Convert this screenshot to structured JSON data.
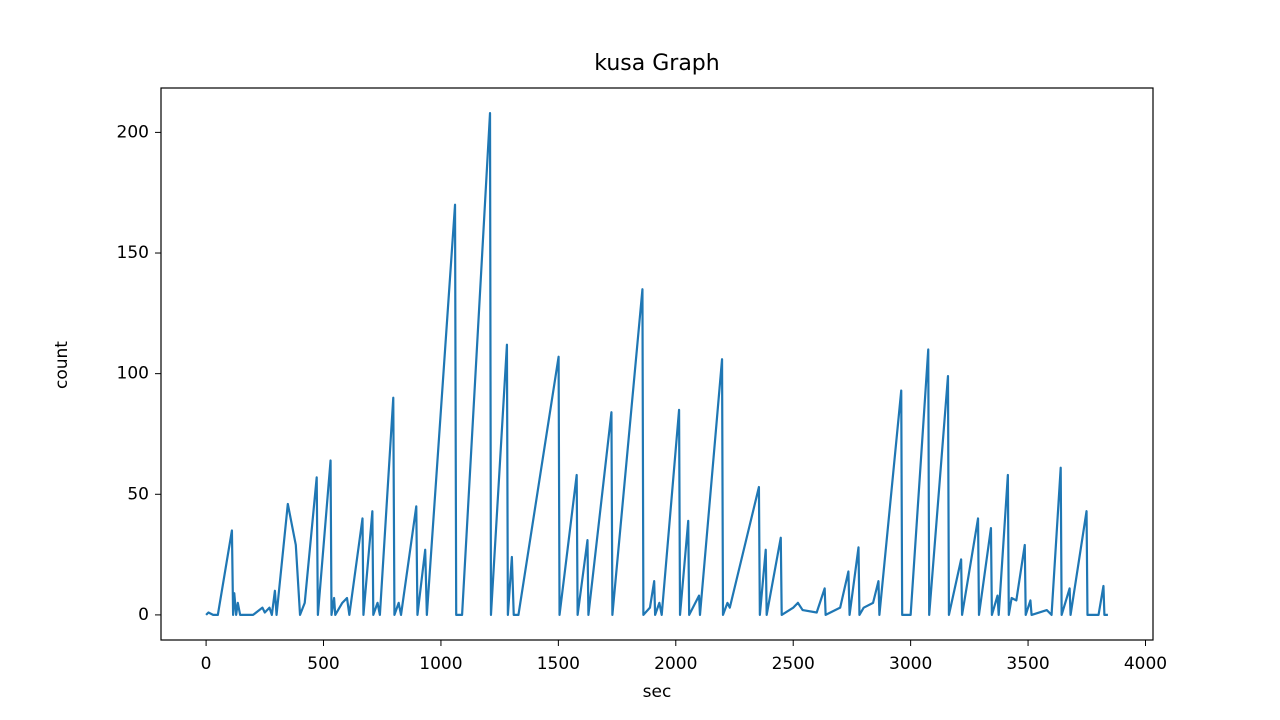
{
  "chart_data": {
    "type": "line",
    "title": "kusa Graph",
    "x_label": "sec",
    "y_label": "count",
    "color": "#1f77b4",
    "x": [
      0,
      10,
      30,
      50,
      110,
      115,
      120,
      128,
      135,
      145,
      200,
      240,
      250,
      270,
      280,
      293,
      300,
      348,
      382,
      400,
      420,
      471,
      476,
      530,
      534,
      545,
      550,
      580,
      600,
      610,
      666,
      670,
      708,
      712,
      730,
      740,
      797,
      802,
      820,
      830,
      895,
      900,
      933,
      940,
      1060,
      1065,
      1090,
      1209,
      1213,
      1281,
      1285,
      1302,
      1310,
      1330,
      1501,
      1505,
      1578,
      1582,
      1624,
      1628,
      1726,
      1730,
      1858,
      1862,
      1890,
      1908,
      1912,
      1930,
      1940,
      2014,
      2018,
      2053,
      2057,
      2099,
      2103,
      2197,
      2201,
      2220,
      2230,
      2354,
      2358,
      2383,
      2387,
      2447,
      2451,
      2500,
      2520,
      2540,
      2600,
      2634,
      2638,
      2700,
      2735,
      2740,
      2778,
      2782,
      2800,
      2840,
      2863,
      2867,
      2960,
      2964,
      3000,
      3075,
      3079,
      3159,
      3163,
      3215,
      3219,
      3287,
      3291,
      3342,
      3346,
      3370,
      3375,
      3414,
      3418,
      3430,
      3450,
      3486,
      3490,
      3510,
      3515,
      3580,
      3600,
      3639,
      3643,
      3677,
      3681,
      3749,
      3753,
      3800,
      3821,
      3825,
      3840
    ],
    "values": [
      0,
      1,
      0,
      0,
      35,
      0,
      9,
      0,
      5,
      0,
      0,
      3,
      1,
      3,
      0,
      10,
      0,
      46,
      29,
      0,
      5,
      57,
      0,
      64,
      0,
      7,
      0,
      5,
      7,
      0,
      40,
      0,
      43,
      0,
      5,
      0,
      90,
      0,
      5,
      0,
      45,
      0,
      27,
      0,
      170,
      0,
      0,
      208,
      0,
      112,
      0,
      24,
      0,
      0,
      107,
      0,
      58,
      0,
      31,
      0,
      84,
      0,
      135,
      0,
      3,
      14,
      0,
      5,
      0,
      85,
      0,
      39,
      0,
      8,
      0,
      106,
      0,
      5,
      3,
      53,
      0,
      27,
      0,
      32,
      0,
      3,
      5,
      2,
      1,
      11,
      0,
      3,
      18,
      0,
      28,
      0,
      3,
      5,
      14,
      0,
      93,
      0,
      0,
      110,
      0,
      99,
      0,
      23,
      0,
      40,
      0,
      36,
      0,
      8,
      0,
      58,
      0,
      7,
      6,
      29,
      0,
      6,
      0,
      2,
      0,
      61,
      0,
      11,
      0,
      43,
      0,
      0,
      12,
      0,
      0
    ],
    "xlim": [
      -192,
      4032
    ],
    "ylim": [
      -10.4,
      218.4
    ],
    "xticks": [
      0,
      500,
      1000,
      1500,
      2000,
      2500,
      3000,
      3500,
      4000
    ],
    "yticks": [
      0,
      50,
      100,
      150,
      200
    ]
  }
}
